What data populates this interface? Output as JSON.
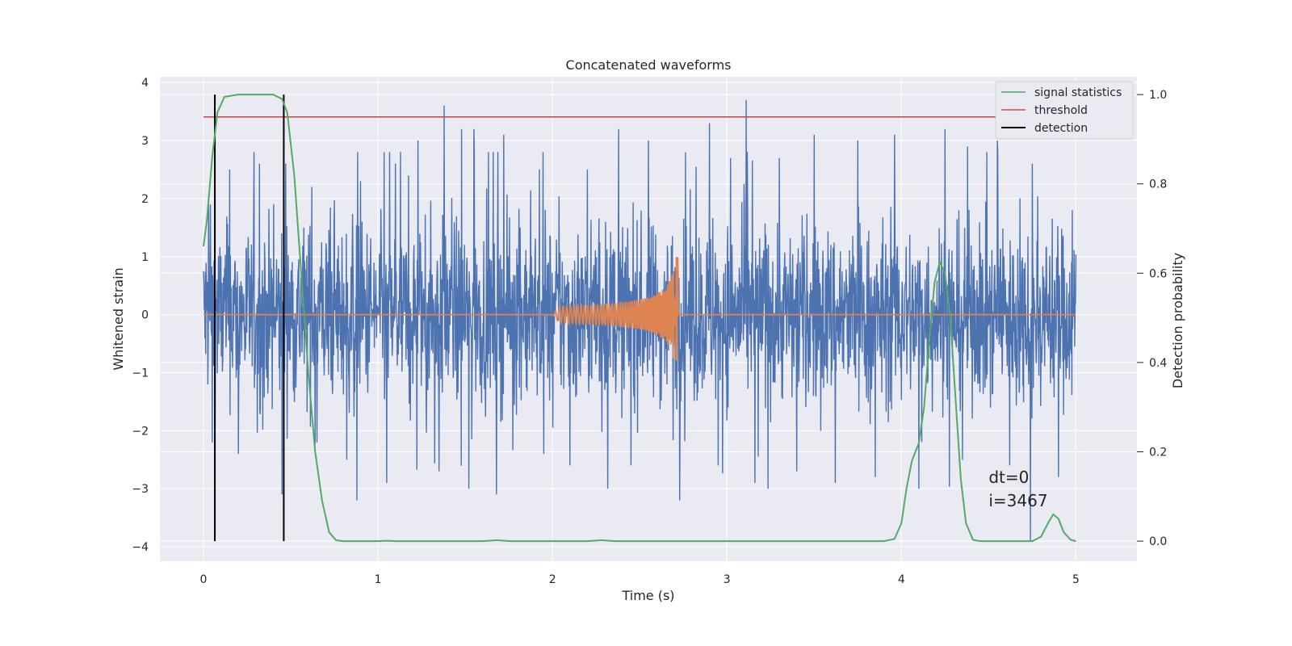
{
  "chart_data": {
    "type": "line",
    "title": "Concatenated waveforms",
    "xlabel": "Time (s)",
    "ylabel": "Whitened strain",
    "y2label": "Detection probability",
    "xlim": [
      -0.25,
      5.35
    ],
    "ylim": [
      -4.25,
      4.1
    ],
    "y2lim": [
      -0.045,
      1.04
    ],
    "xticks": [
      0,
      1,
      2,
      3,
      4,
      5
    ],
    "yticks": [
      -4,
      -3,
      -2,
      -1,
      0,
      1,
      2,
      3,
      4
    ],
    "y2ticks": [
      0.0,
      0.2,
      0.4,
      0.6,
      0.8,
      1.0
    ],
    "grid": true,
    "legend_position": "top-right",
    "colors": {
      "background": "#eaeaf2",
      "grid": "#ffffff",
      "strain": "#4c72b0",
      "template": "#dd8452",
      "signal_statistics": "#55a868",
      "threshold": "#c44e52",
      "detection": "#000000"
    },
    "series": [
      {
        "name": "",
        "axis": "left",
        "style": "whitened strain noise, amplitude approx. ±1 with spikes to ±3.7",
        "x_range": [
          0,
          5
        ],
        "spikes_up": [
          [
            0.04,
            1.9
          ],
          [
            0.15,
            2.5
          ],
          [
            0.32,
            2.6
          ],
          [
            0.47,
            2.6
          ],
          [
            0.62,
            2.2
          ],
          [
            0.9,
            2.3
          ],
          [
            1.1,
            2.6
          ],
          [
            1.23,
            3.0
          ],
          [
            1.38,
            3.6
          ],
          [
            1.48,
            3.2
          ],
          [
            1.55,
            3.2
          ],
          [
            1.72,
            3.1
          ],
          [
            1.95,
            3.2
          ],
          [
            2.2,
            2.5
          ],
          [
            2.38,
            3.2
          ],
          [
            2.55,
            3.0
          ],
          [
            2.73,
            2.2
          ],
          [
            2.9,
            3.3
          ],
          [
            3.02,
            2.7
          ],
          [
            3.11,
            3.7
          ],
          [
            3.3,
            2.7
          ],
          [
            3.5,
            3.1
          ],
          [
            3.75,
            3.0
          ],
          [
            3.96,
            3.1
          ],
          [
            4.25,
            3.2
          ],
          [
            4.38,
            2.9
          ],
          [
            4.55,
            3.0
          ],
          [
            4.75,
            2.6
          ],
          [
            4.98,
            1.8
          ]
        ],
        "spikes_down": [
          [
            0.05,
            -2.2
          ],
          [
            0.2,
            -2.4
          ],
          [
            0.45,
            -3.1
          ],
          [
            0.65,
            -2.2
          ],
          [
            0.82,
            -2.5
          ],
          [
            0.88,
            -3.2
          ],
          [
            1.05,
            -2.9
          ],
          [
            1.35,
            -2.7
          ],
          [
            1.52,
            -3.0
          ],
          [
            1.68,
            -3.1
          ],
          [
            1.95,
            -2.4
          ],
          [
            2.1,
            -2.6
          ],
          [
            2.45,
            -2.6
          ],
          [
            2.73,
            -3.2
          ],
          [
            2.95,
            -2.6
          ],
          [
            3.16,
            -2.9
          ],
          [
            3.4,
            -2.7
          ],
          [
            3.62,
            -2.9
          ],
          [
            3.85,
            -2.8
          ],
          [
            4.1,
            -3.0
          ],
          [
            4.35,
            -2.5
          ],
          [
            4.62,
            -2.6
          ],
          [
            4.74,
            -3.9
          ],
          [
            4.9,
            -2.8
          ]
        ]
      },
      {
        "name": "",
        "axis": "left",
        "style": "chirp template: flat 0, oscillation from 2.0 s growing to ±1.0 at 2.72 s",
        "chirp_start": 2.0,
        "chirp_end": 2.72,
        "peak_amplitude": 1.0
      },
      {
        "name": "signal statistics",
        "axis": "right",
        "points": [
          [
            0.0,
            0.66
          ],
          [
            0.02,
            0.72
          ],
          [
            0.05,
            0.86
          ],
          [
            0.08,
            0.96
          ],
          [
            0.12,
            0.995
          ],
          [
            0.2,
            1.0
          ],
          [
            0.4,
            1.0
          ],
          [
            0.45,
            0.99
          ],
          [
            0.48,
            0.96
          ],
          [
            0.52,
            0.82
          ],
          [
            0.56,
            0.6
          ],
          [
            0.6,
            0.38
          ],
          [
            0.64,
            0.2
          ],
          [
            0.68,
            0.09
          ],
          [
            0.72,
            0.02
          ],
          [
            0.76,
            0.002
          ],
          [
            0.8,
            0.0
          ],
          [
            1.0,
            0.0
          ],
          [
            1.05,
            0.001
          ],
          [
            1.1,
            0.0
          ],
          [
            1.6,
            0.0
          ],
          [
            1.68,
            0.002
          ],
          [
            1.76,
            0.0
          ],
          [
            2.2,
            0.0
          ],
          [
            2.28,
            0.002
          ],
          [
            2.36,
            0.0
          ],
          [
            3.9,
            0.0
          ],
          [
            3.96,
            0.005
          ],
          [
            4.0,
            0.04
          ],
          [
            4.03,
            0.12
          ],
          [
            4.06,
            0.18
          ],
          [
            4.1,
            0.22
          ],
          [
            4.13,
            0.3
          ],
          [
            4.16,
            0.45
          ],
          [
            4.19,
            0.58
          ],
          [
            4.22,
            0.625
          ],
          [
            4.25,
            0.6
          ],
          [
            4.28,
            0.5
          ],
          [
            4.31,
            0.32
          ],
          [
            4.34,
            0.14
          ],
          [
            4.37,
            0.04
          ],
          [
            4.41,
            0.003
          ],
          [
            4.45,
            0.0
          ],
          [
            4.75,
            0.0
          ],
          [
            4.8,
            0.01
          ],
          [
            4.84,
            0.04
          ],
          [
            4.87,
            0.06
          ],
          [
            4.9,
            0.05
          ],
          [
            4.93,
            0.02
          ],
          [
            4.97,
            0.003
          ],
          [
            5.0,
            0.0
          ]
        ]
      },
      {
        "name": "threshold",
        "axis": "right",
        "points": [
          [
            0.0,
            0.95
          ],
          [
            5.0,
            0.95
          ]
        ]
      },
      {
        "name": "detection",
        "axis": "right",
        "x": [
          0.065,
          0.46
        ],
        "y_range": [
          0.0,
          1.0
        ]
      }
    ],
    "legend": [
      "signal statistics",
      "threshold",
      "detection"
    ],
    "annotations": [
      "dt=0",
      "i=3467"
    ],
    "annotation_position": [
      4.5,
      -3.0
    ]
  }
}
